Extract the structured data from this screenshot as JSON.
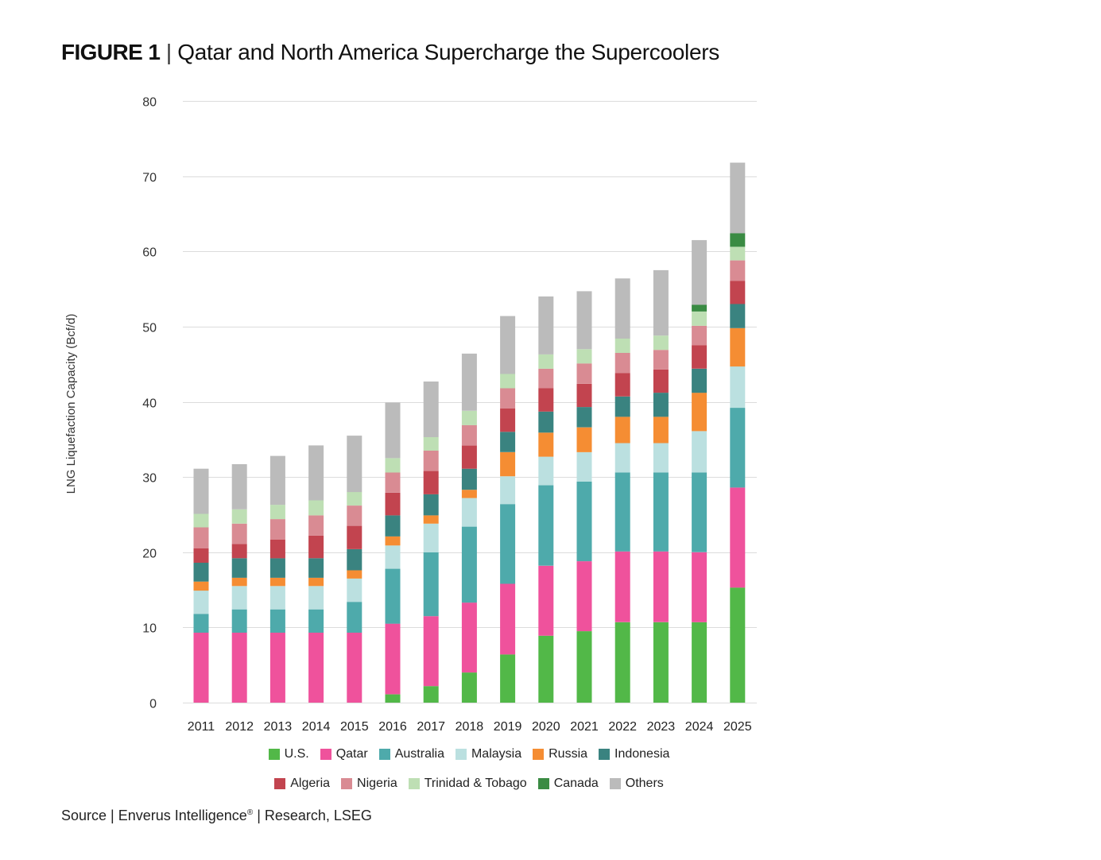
{
  "title": {
    "figure_label": "FIGURE 1",
    "separator": "|",
    "text": "Qatar and North America Supercharge the Supercoolers"
  },
  "source": {
    "prefix": "Source | Enverus Intelligence",
    "registered_mark": "®",
    "suffix": " | Research, LSEG"
  },
  "chart_data": {
    "type": "bar",
    "stacked": true,
    "title": "Qatar and North America Supercharge the Supercoolers",
    "xlabel": "",
    "ylabel": "LNG Liquefaction Capacity (Bcf/d)",
    "ylim": [
      0,
      80
    ],
    "yticks": [
      0,
      10,
      20,
      30,
      40,
      50,
      60,
      70,
      80
    ],
    "grid": true,
    "legend_position": "bottom",
    "categories": [
      "2011",
      "2012",
      "2013",
      "2014",
      "2015",
      "2016",
      "2017",
      "2018",
      "2019",
      "2020",
      "2021",
      "2022",
      "2023",
      "2024",
      "2025"
    ],
    "series": [
      {
        "name": "U.S.",
        "color": "#52b848",
        "values": [
          0,
          0,
          0,
          0,
          0,
          1.1,
          2.2,
          4.0,
          6.4,
          8.9,
          9.5,
          10.7,
          10.7,
          10.7,
          15.3
        ]
      },
      {
        "name": "Qatar",
        "color": "#ef529c",
        "values": [
          9.3,
          9.3,
          9.3,
          9.3,
          9.3,
          9.4,
          9.3,
          9.3,
          9.4,
          9.3,
          9.3,
          9.4,
          9.4,
          9.3,
          13.3
        ]
      },
      {
        "name": "Australia",
        "color": "#4eaaab",
        "values": [
          2.5,
          3.1,
          3.1,
          3.1,
          4.1,
          7.3,
          8.5,
          10.1,
          10.6,
          10.7,
          10.6,
          10.5,
          10.5,
          10.6,
          10.6
        ]
      },
      {
        "name": "Malaysia",
        "color": "#bbe0e0",
        "values": [
          3.1,
          3.1,
          3.1,
          3.1,
          3.1,
          3.1,
          3.8,
          3.8,
          3.7,
          3.8,
          3.9,
          3.9,
          3.9,
          5.5,
          5.5
        ]
      },
      {
        "name": "Russia",
        "color": "#f58d33",
        "values": [
          1.2,
          1.1,
          1.1,
          1.1,
          1.1,
          1.2,
          1.1,
          1.1,
          3.2,
          3.2,
          3.3,
          3.5,
          3.5,
          5.1,
          5.1
        ]
      },
      {
        "name": "Indonesia",
        "color": "#3a8380",
        "values": [
          2.5,
          2.6,
          2.6,
          2.6,
          2.8,
          2.8,
          2.8,
          2.8,
          2.7,
          2.8,
          2.7,
          2.7,
          3.2,
          3.2,
          3.2
        ]
      },
      {
        "name": "Algeria",
        "color": "#c2444f",
        "values": [
          1.9,
          1.9,
          2.5,
          3.0,
          3.1,
          3.0,
          3.1,
          3.1,
          3.1,
          3.1,
          3.1,
          3.1,
          3.1,
          3.1,
          3.1
        ]
      },
      {
        "name": "Nigeria",
        "color": "#d98b93",
        "values": [
          2.8,
          2.7,
          2.7,
          2.7,
          2.7,
          2.7,
          2.7,
          2.7,
          2.7,
          2.6,
          2.7,
          2.7,
          2.6,
          2.6,
          2.7
        ]
      },
      {
        "name": "Trinidad & Tobago",
        "color": "#bedfb4",
        "values": [
          1.8,
          1.9,
          1.9,
          2.0,
          1.8,
          1.9,
          1.8,
          1.9,
          1.9,
          1.9,
          1.9,
          1.9,
          1.9,
          1.9,
          1.8
        ]
      },
      {
        "name": "Canada",
        "color": "#3a8b43",
        "values": [
          0,
          0,
          0,
          0,
          0,
          0,
          0,
          0,
          0,
          0,
          0,
          0,
          0,
          0.9,
          1.8
        ]
      },
      {
        "name": "Others",
        "color": "#bbbbbb",
        "values": [
          6.0,
          6.0,
          6.5,
          7.3,
          7.5,
          7.4,
          7.4,
          7.6,
          7.7,
          7.7,
          7.7,
          8.0,
          8.7,
          8.6,
          9.4
        ]
      }
    ],
    "legend_rows": [
      [
        "U.S.",
        "Qatar",
        "Australia",
        "Malaysia",
        "Russia",
        "Indonesia"
      ],
      [
        "Algeria",
        "Nigeria",
        "Trinidad & Tobago",
        "Canada",
        "Others"
      ]
    ]
  },
  "colors": {
    "gridline": "#dcdcdc",
    "text": "#222222"
  }
}
